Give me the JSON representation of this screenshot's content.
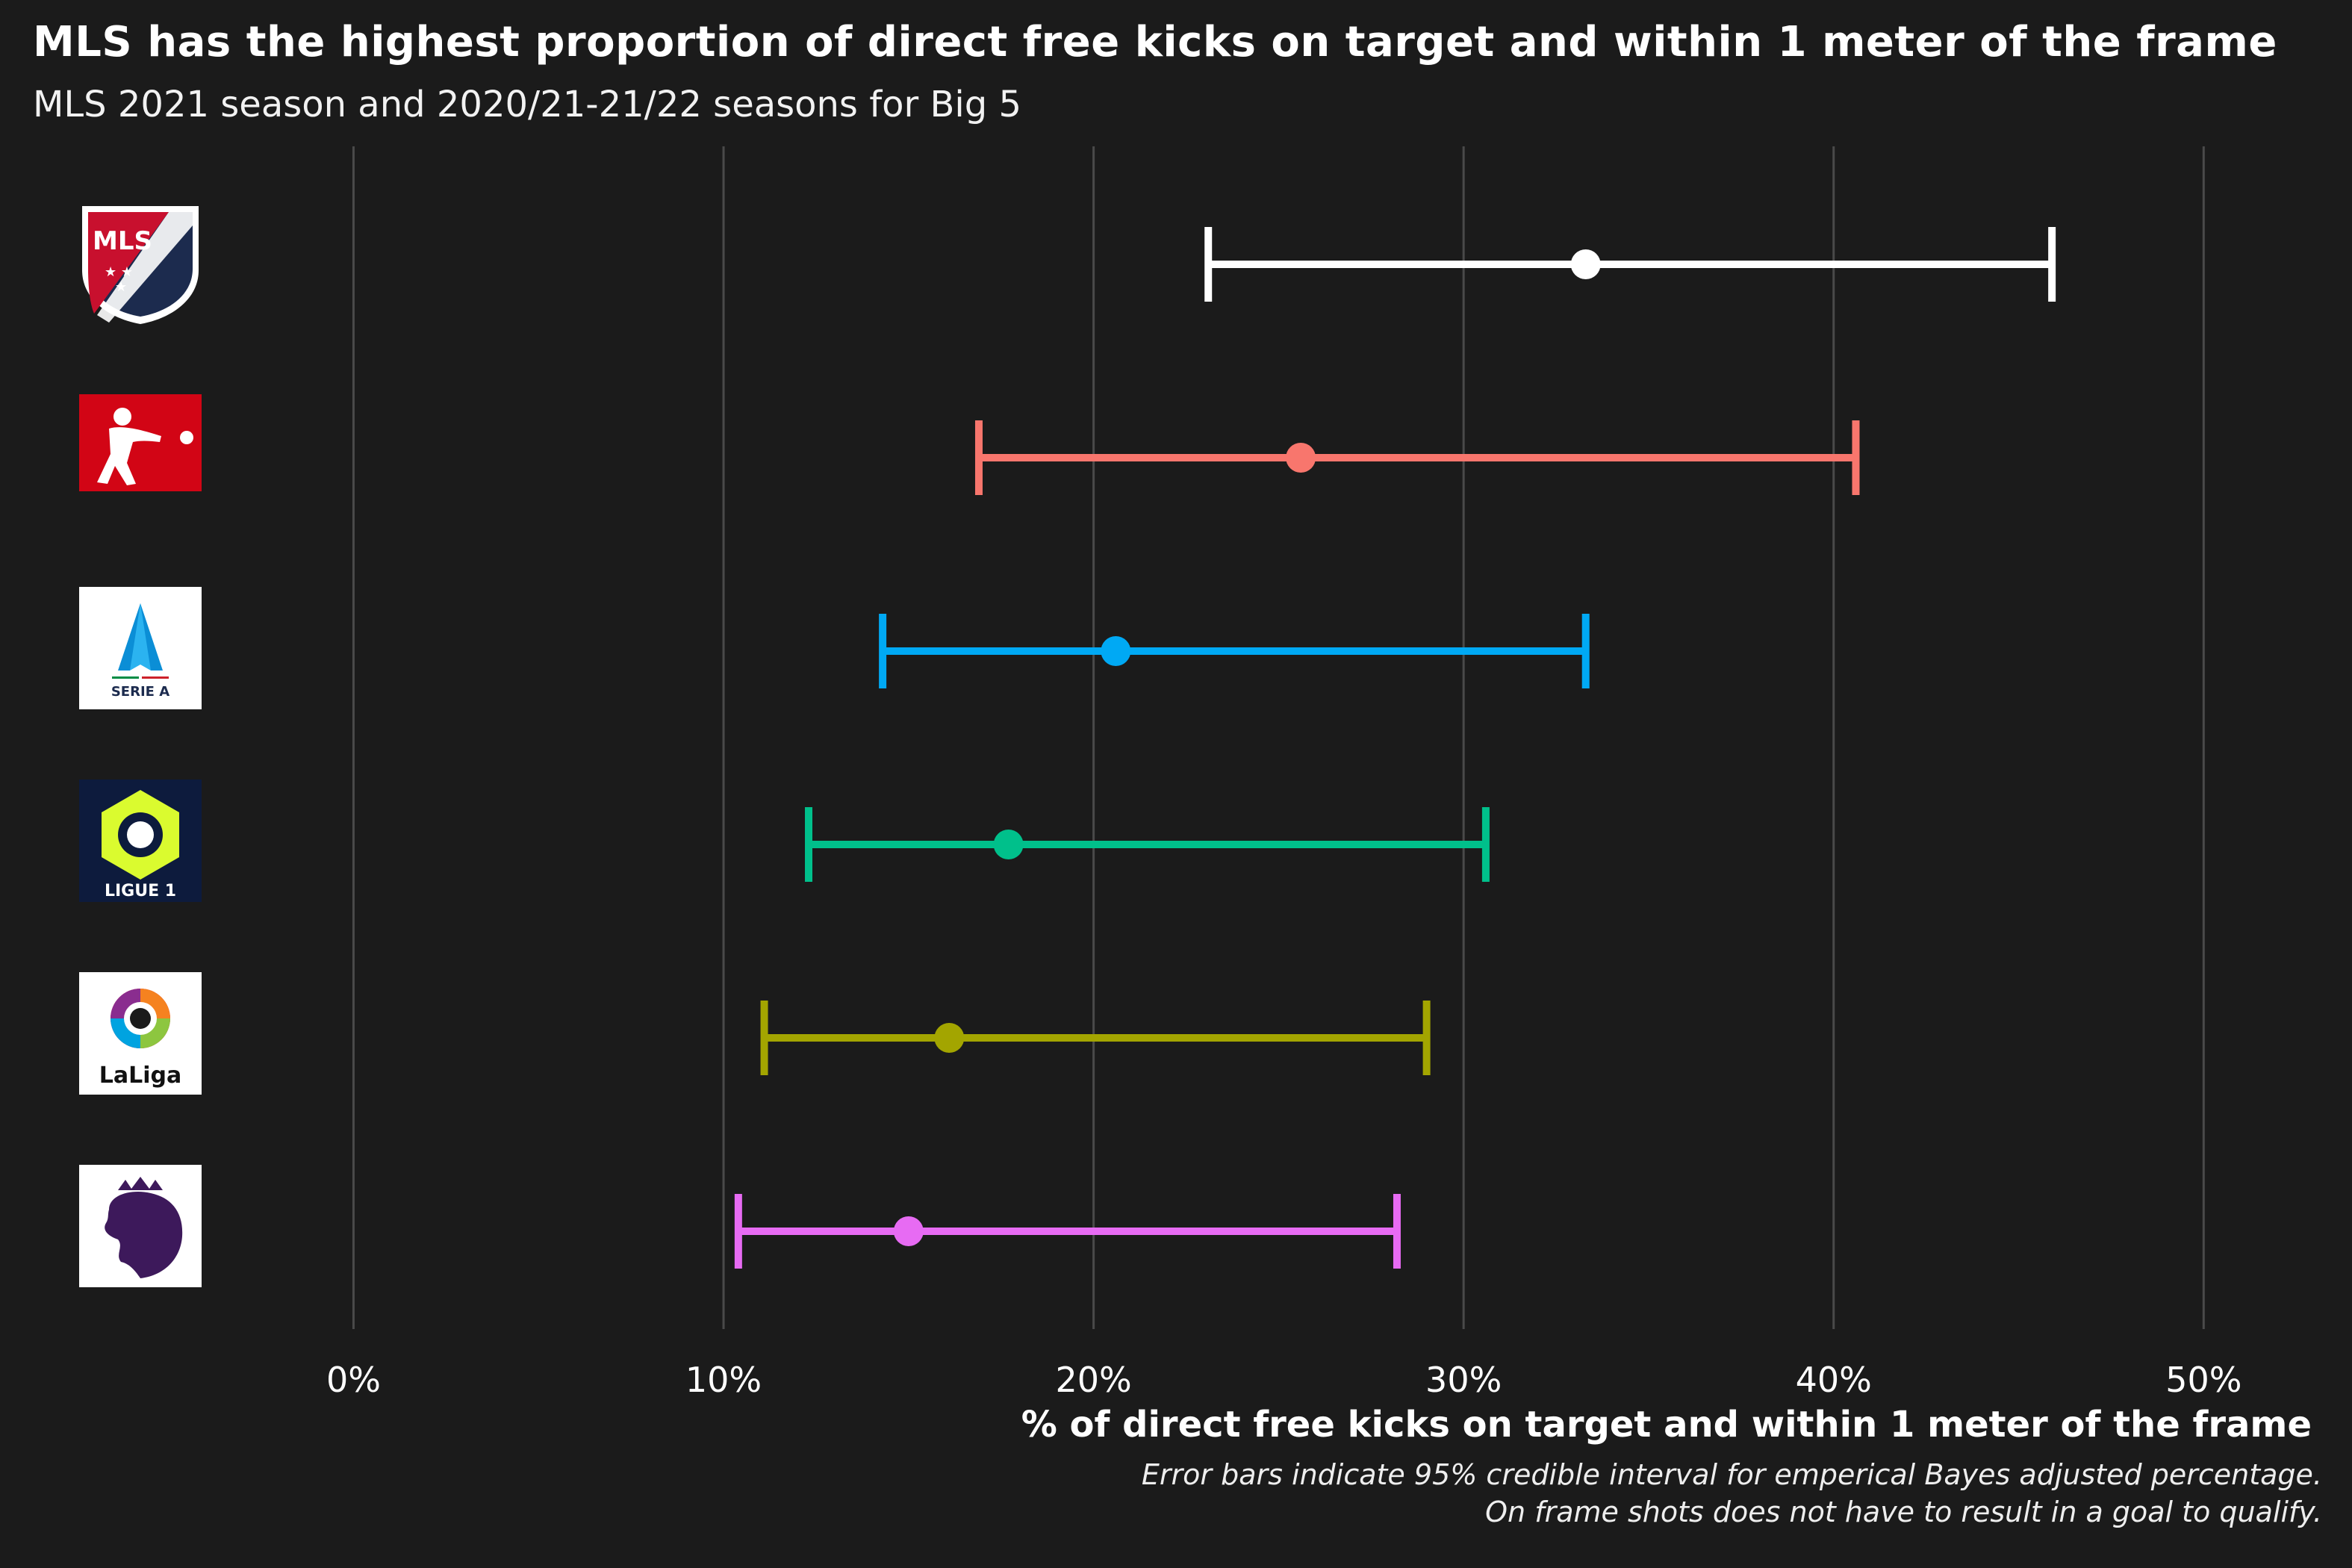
{
  "title": "MLS has the highest proportion of direct free kicks on target and within 1 meter of the frame",
  "subtitle": "MLS 2021 season and 2020/21-21/22 seasons for Big 5",
  "caption_line1": "Error bars indicate 95% credible interval for emperical Bayes adjusted percentage.",
  "caption_line2": "On frame shots does not have to result in a goal to qualify.",
  "logos": {
    "mls_text": "MLS",
    "serie_a_text": "SERIE A",
    "ligue1_text": "LIGUE 1",
    "laliga_text": "LaLiga"
  },
  "chart_data": {
    "type": "errorbar",
    "title": "MLS has the highest proportion of direct free kicks on target and within 1 meter of the frame",
    "subtitle": "MLS 2021 season and 2020/21-21/22 seasons for Big 5",
    "xlabel": "% of direct free kicks on target and within 1 meter of the frame",
    "xlim": [
      -0.035,
      0.53
    ],
    "x_ticks": [
      0,
      0.1,
      0.2,
      0.3,
      0.4,
      0.5
    ],
    "x_tick_labels": [
      "0%",
      "10%",
      "20%",
      "30%",
      "40%",
      "50%"
    ],
    "grid": "vertical",
    "series": [
      {
        "logo": "mls",
        "estimate": 0.333,
        "lower": 0.231,
        "upper": 0.459,
        "color": "#ffffff"
      },
      {
        "logo": "bundesliga",
        "estimate": 0.256,
        "lower": 0.169,
        "upper": 0.406,
        "color": "#f8766d"
      },
      {
        "logo": "serie-a",
        "estimate": 0.206,
        "lower": 0.143,
        "upper": 0.333,
        "color": "#00a9f4"
      },
      {
        "logo": "ligue-1",
        "estimate": 0.177,
        "lower": 0.123,
        "upper": 0.306,
        "color": "#00c08b"
      },
      {
        "logo": "laliga",
        "estimate": 0.161,
        "lower": 0.111,
        "upper": 0.29,
        "color": "#a3a500"
      },
      {
        "logo": "premier-league",
        "estimate": 0.15,
        "lower": 0.104,
        "upper": 0.282,
        "color": "#e76bf3"
      }
    ]
  }
}
